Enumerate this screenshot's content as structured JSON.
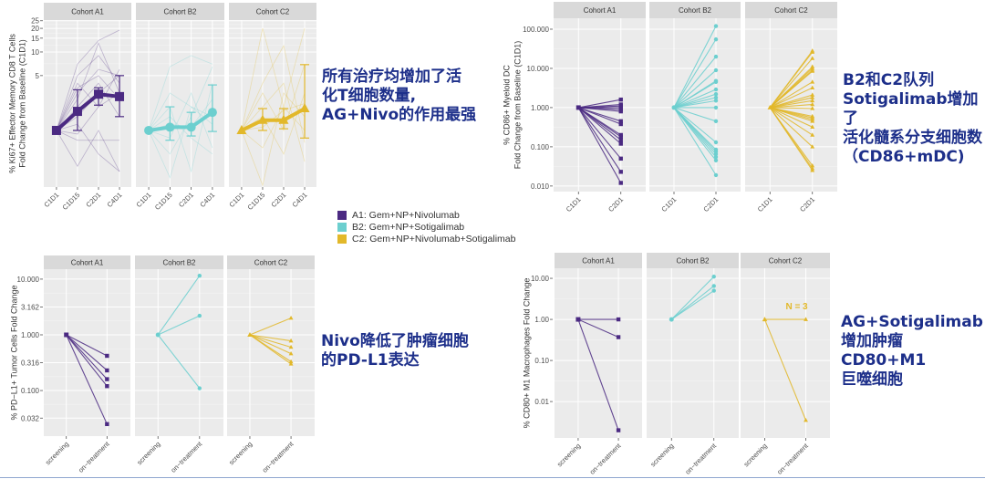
{
  "colors": {
    "A1": "#4b2a82",
    "B2": "#6ccfcf",
    "C2": "#e2b82a",
    "panel_bg": "#ebebeb",
    "strip_bg": "#d9d9d9",
    "note_text": "#1d2f8a"
  },
  "legend": [
    {
      "key": "A1",
      "label": "A1: Gem+NP+Nivolumab"
    },
    {
      "key": "B2",
      "label": "B2: Gem+NP+Sotigalimab"
    },
    {
      "key": "C2",
      "label": "C2: Gem+NP+Nivolumab+Sotigalimab"
    }
  ],
  "notes": {
    "n1": [
      "所有治疗均增加了活",
      "化T细胞数量,",
      "AG+Nivo的作用最强"
    ],
    "n2": [
      "B2和C2队列",
      "Sotigalimab增加了",
      "活化髓系分支细胞数",
      "（CD86+mDC)"
    ],
    "n3": [
      "Nivo降低了肿瘤细胞",
      "的PD-L1表达"
    ],
    "n4": [
      "AG+Sotigalimab",
      "增加肿瘤CD80+M1",
      "巨噬细胞"
    ]
  },
  "chart_data": [
    {
      "type": "line",
      "ylabel": [
        "% Ki67+ Effector Memory CD8 T Cells",
        "Fold Change from Baseline (C1D1)"
      ],
      "yscale": "log",
      "ylim": [
        0.19,
        25.5
      ],
      "yticks": [
        5,
        10,
        15,
        20,
        25
      ],
      "ytick_labels": [
        "5",
        "10",
        "15",
        "20",
        "25"
      ],
      "x": [
        "C1D1",
        "C1D15",
        "C2D1",
        "C4D1"
      ],
      "panels": [
        {
          "name": "Cohort A1",
          "key": "A1",
          "marker": "square",
          "individual": [
            [
              1,
              7,
              14,
              19
            ],
            [
              1,
              5,
              9,
              4
            ],
            [
              1,
              3,
              6,
              5
            ],
            [
              1,
              2.5,
              13,
              3
            ],
            [
              1,
              1.5,
              3,
              5
            ],
            [
              1,
              0.9,
              2,
              3
            ],
            [
              1,
              0.35,
              1,
              0.3
            ],
            [
              1,
              0.75,
              0.75,
              0.75
            ],
            [
              1,
              2,
              4,
              1.5
            ],
            [
              1,
              4,
              2,
              6
            ],
            [
              1,
              1.2,
              0.5,
              0.3
            ],
            [
              1,
              3.5,
              5,
              2.5
            ]
          ],
          "mean": [
            1,
            1.75,
            2.9,
            2.7
          ],
          "err_low": [
            1,
            1.0,
            2.1,
            1.5
          ],
          "err_high": [
            1,
            3.3,
            3.5,
            5.0
          ]
        },
        {
          "name": "Cohort B2",
          "key": "B2",
          "marker": "circle",
          "individual": [
            [
              1,
              6.5,
              9,
              7
            ],
            [
              1,
              0.25,
              2,
              1.5
            ],
            [
              1,
              2,
              0.3,
              4
            ],
            [
              1,
              0.5,
              1.5,
              6.5
            ],
            [
              1,
              1.5,
              0.8,
              0.5
            ],
            [
              1,
              3,
              2,
              1.2
            ],
            [
              1,
              0.8,
              3,
              0.6
            ],
            [
              1,
              1.2,
              1.1,
              2.5
            ]
          ],
          "mean": [
            1,
            1.1,
            1.1,
            1.7
          ],
          "err_low": [
            1,
            0.75,
            0.85,
            0.97
          ],
          "err_high": [
            1,
            2.0,
            1.7,
            3.8
          ]
        },
        {
          "name": "Cohort C2",
          "key": "C2",
          "marker": "triangle",
          "individual": [
            [
              1,
              20,
              2,
              20
            ],
            [
              1,
              4,
              12,
              0.7
            ],
            [
              1,
              0.2,
              3,
              1.5
            ],
            [
              1,
              2,
              4,
              0.4
            ],
            [
              1,
              1.5,
              0.5,
              3
            ],
            [
              1,
              3,
              1,
              7
            ],
            [
              1,
              0.6,
              2,
              1
            ],
            [
              1,
              1.1,
              1.8,
              2.2
            ]
          ],
          "mean": [
            1,
            1.35,
            1.35,
            1.9
          ],
          "err_low": [
            1,
            1.0,
            1.05,
            0.8
          ],
          "err_high": [
            1,
            1.9,
            1.9,
            6.9
          ]
        }
      ]
    },
    {
      "type": "line",
      "ylabel": [
        "% CD86+ Myeloid DC",
        "Fold Change from Baseline (C1D1)"
      ],
      "yscale": "log",
      "ylim": [
        0.0072,
        190
      ],
      "yticks": [
        100,
        10,
        1,
        0.1,
        0.01
      ],
      "ytick_labels": [
        "100.000",
        "10.000",
        "1.000",
        "0.100",
        "0.010"
      ],
      "x": [
        "C1D1",
        "C2D1"
      ],
      "panels": [
        {
          "name": "Cohort A1",
          "key": "A1",
          "marker": "square",
          "end_values": [
            1.6,
            1.2,
            1.1,
            1.0,
            0.9,
            0.8,
            0.45,
            0.38,
            0.2,
            0.18,
            0.15,
            0.12,
            0.05,
            0.023,
            0.012
          ]
        },
        {
          "name": "Cohort B2",
          "key": "B2",
          "marker": "circle",
          "end_values": [
            120,
            55,
            20,
            9,
            4.8,
            4.5,
            2.9,
            2.2,
            1.8,
            1.5,
            1.0,
            0.45,
            0.13,
            0.085,
            0.075,
            0.065,
            0.055,
            0.045,
            0.019
          ]
        },
        {
          "name": "Cohort C2",
          "key": "C2",
          "marker": "triangle",
          "end_values": [
            28,
            26,
            18,
            11,
            10,
            9,
            8.5,
            4.5,
            3.2,
            2.1,
            1.8,
            1.5,
            1.2,
            0.95,
            0.6,
            0.55,
            0.5,
            0.45,
            0.32,
            0.2,
            0.1,
            0.033,
            0.028,
            0.025
          ]
        }
      ]
    },
    {
      "type": "line",
      "ylabel": [
        "% PD−L1+ Tumor Cells Fold Change"
      ],
      "yscale": "log",
      "ylim": [
        0.0152,
        15.1
      ],
      "yticks": [
        10,
        3.162,
        1,
        0.316,
        0.1,
        0.032
      ],
      "ytick_labels": [
        "10.000",
        "3.162",
        "1.000",
        "0.316",
        "0.100",
        "0.032"
      ],
      "x": [
        "screening",
        "on−treatment"
      ],
      "panels": [
        {
          "name": "Cohort A1",
          "key": "A1",
          "marker": "square",
          "end_values": [
            0.42,
            0.23,
            0.16,
            0.12,
            0.025
          ]
        },
        {
          "name": "Cohort B2",
          "key": "B2",
          "marker": "circle",
          "end_values": [
            11.5,
            2.2,
            0.11
          ]
        },
        {
          "name": "Cohort C2",
          "key": "C2",
          "marker": "triangle",
          "end_values": [
            2.0,
            0.78,
            0.6,
            0.46,
            0.33,
            0.3
          ]
        }
      ]
    },
    {
      "type": "line",
      "ylabel": [
        "% CD80+ M1 Macrophages Fold Change"
      ],
      "yscale": "log",
      "ylim": [
        0.0013,
        17.6
      ],
      "yticks": [
        10,
        1,
        0.1,
        0.01
      ],
      "ytick_labels": [
        "10.00",
        "1.00",
        "0.10",
        "0.01"
      ],
      "x": [
        "screening",
        "on−treatment"
      ],
      "panels": [
        {
          "name": "Cohort A1",
          "key": "A1",
          "marker": "square",
          "end_values": [
            1.0,
            0.37,
            0.002
          ]
        },
        {
          "name": "Cohort B2",
          "key": "B2",
          "marker": "circle",
          "end_values": [
            11,
            6.5,
            5
          ]
        },
        {
          "name": "Cohort C2",
          "key": "C2",
          "marker": "triangle",
          "end_values": [
            1.0,
            0.0035
          ],
          "annotation": "N = 3"
        }
      ]
    }
  ]
}
